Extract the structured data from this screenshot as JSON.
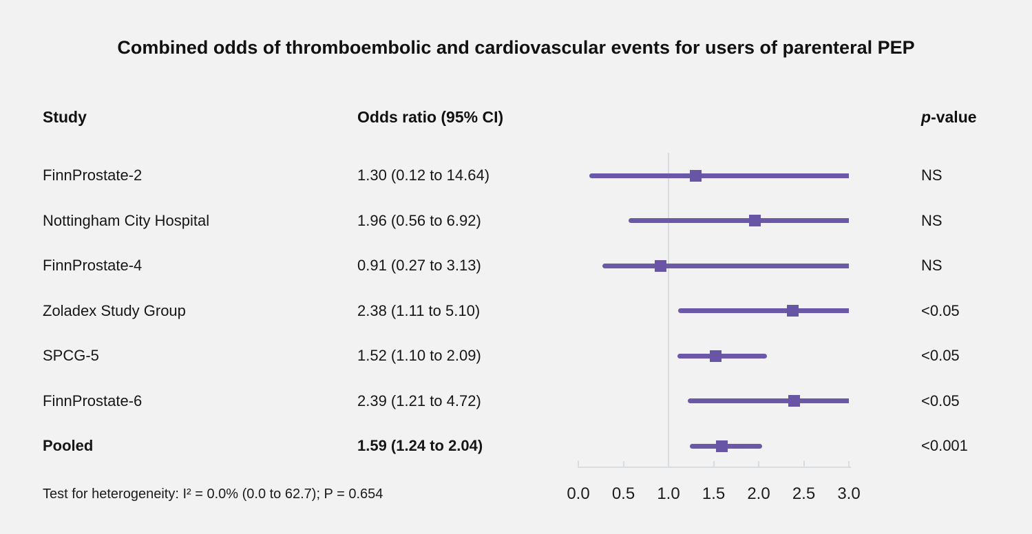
{
  "chart_data": {
    "type": "forest",
    "title": "Combined odds of thromboembolic and cardiovascular events for users of parenteral PEP",
    "columns": {
      "study": "Study",
      "odds": "Odds ratio (95% CI)",
      "p_italic": "p",
      "p_rest": "-value"
    },
    "axis": {
      "label_orientation": "horizontal",
      "min": 0.0,
      "max": 3.0,
      "tick_values": [
        0,
        0.5,
        1,
        1.5,
        2,
        2.5,
        3
      ],
      "tick_labels": [
        "0.0",
        "0.5",
        "1.0",
        "1.5",
        "2.0",
        "2.5",
        "3.0"
      ],
      "reference_line": 1.0
    },
    "rows": [
      {
        "study": "FinnProstate-2",
        "or_text": "1.30 (0.12 to 14.64)",
        "est": 1.3,
        "lo": 0.12,
        "hi": 14.64,
        "p": "NS",
        "bold": false
      },
      {
        "study": "Nottingham City Hospital",
        "or_text": "1.96 (0.56 to 6.92)",
        "est": 1.96,
        "lo": 0.56,
        "hi": 6.92,
        "p": "NS",
        "bold": false
      },
      {
        "study": "FinnProstate-4",
        "or_text": "0.91 (0.27 to 3.13)",
        "est": 0.91,
        "lo": 0.27,
        "hi": 3.13,
        "p": "NS",
        "bold": false
      },
      {
        "study": "Zoladex Study Group",
        "or_text": "2.38 (1.11 to 5.10)",
        "est": 2.38,
        "lo": 1.11,
        "hi": 5.1,
        "p": "<0.05",
        "bold": false
      },
      {
        "study": "SPCG-5",
        "or_text": "1.52 (1.10 to 2.09)",
        "est": 1.52,
        "lo": 1.1,
        "hi": 2.09,
        "p": "<0.05",
        "bold": false
      },
      {
        "study": "FinnProstate-6",
        "or_text": "2.39 (1.21 to 4.72)",
        "est": 2.39,
        "lo": 1.21,
        "hi": 4.72,
        "p": "<0.05",
        "bold": false
      },
      {
        "study": "Pooled",
        "or_text": "1.59 (1.24 to 2.04)",
        "est": 1.59,
        "lo": 1.24,
        "hi": 2.04,
        "p": "<0.001",
        "bold": true
      }
    ],
    "footnote": "Test for heterogeneity: I² = 0.0% (0.0 to 62.7); P = 0.654",
    "colors": {
      "ci_line": "#6b59a8",
      "marker": "#6955a5",
      "axis": "#d8dde2",
      "text": "#141414",
      "background": "#f2f2f2"
    }
  }
}
